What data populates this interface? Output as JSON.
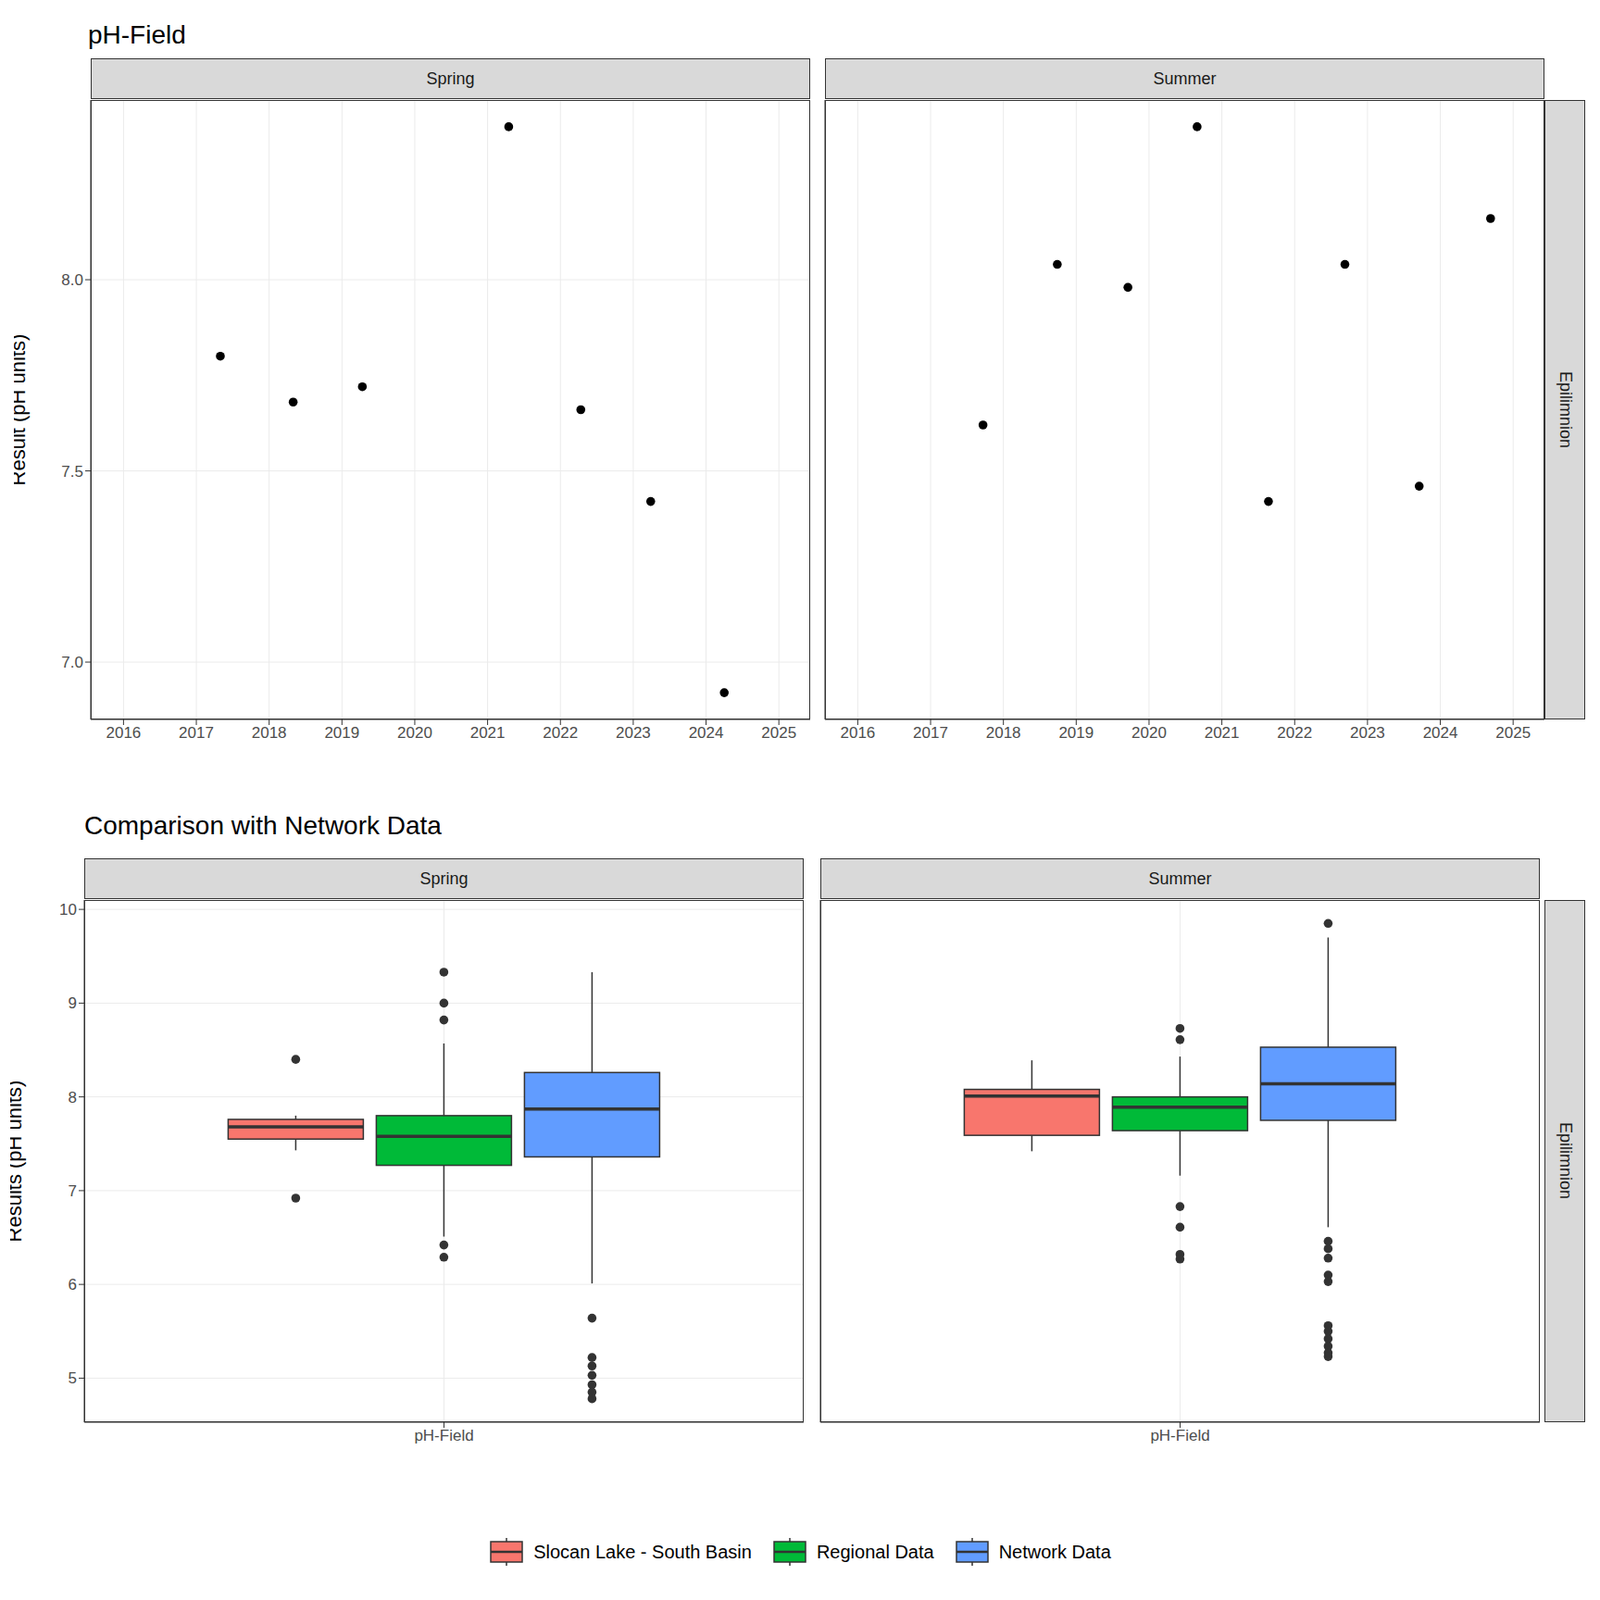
{
  "chart_data": [
    {
      "type": "scatter",
      "title": "pH-Field",
      "y_label": "Result (pH units)",
      "row_label": "Epilimnion",
      "color": "#000000",
      "grid": true,
      "xlim": [
        2015.55,
        2025.43
      ],
      "xticks": [
        2016,
        2017,
        2018,
        2019,
        2020,
        2021,
        2022,
        2023,
        2024,
        2025
      ],
      "ylim": [
        6.85,
        8.47
      ],
      "yticks": [
        {
          "value": 7,
          "label": "7.0"
        },
        7.5,
        {
          "value": 8,
          "label": "8.0"
        }
      ],
      "panels": [
        {
          "label": "Spring",
          "x": [
            2017.33,
            2018.33,
            2019.28,
            2021.29,
            2022.28,
            2023.24,
            2024.25
          ],
          "y": [
            7.8,
            7.68,
            7.72,
            8.4,
            7.66,
            7.42,
            6.92
          ]
        },
        {
          "label": "Summer",
          "x": [
            2017.72,
            2018.74,
            2019.71,
            2020.66,
            2021.64,
            2022.69,
            2023.71,
            2024.69
          ],
          "y": [
            7.62,
            8.04,
            7.98,
            8.4,
            7.42,
            8.04,
            7.46,
            8.16
          ]
        }
      ]
    },
    {
      "type": "boxplot",
      "title": "Comparison with Network Data",
      "y_label": "Results (pH units)",
      "row_label": "Epilimnion",
      "grid": true,
      "legend": "bottom",
      "categories": [
        "pH-Field"
      ],
      "ylim": [
        4.53,
        10.1
      ],
      "yticks": [
        5,
        6,
        7,
        8,
        9,
        10
      ],
      "series": [
        {
          "name": "Slocan Lake - South Basin",
          "color": "#F8766D"
        },
        {
          "name": "Regional Data",
          "color": "#00BA38"
        },
        {
          "name": "Network Data",
          "color": "#619CFF"
        }
      ],
      "panels": [
        {
          "label": "Spring",
          "boxes": [
            {
              "q1": 7.55,
              "median": 7.68,
              "q3": 7.76,
              "whisker_low": 7.43,
              "whisker_high": 7.8,
              "outliers": [
                8.4,
                6.92
              ]
            },
            {
              "q1": 7.27,
              "median": 7.58,
              "q3": 7.8,
              "whisker_low": 6.51,
              "whisker_high": 8.57,
              "outliers": [
                9.33,
                9.0,
                8.82,
                6.42,
                6.29
              ]
            },
            {
              "q1": 7.36,
              "median": 7.87,
              "q3": 8.26,
              "whisker_low": 6.01,
              "whisker_high": 9.33,
              "outliers": [
                5.64,
                5.22,
                5.13,
                5.03,
                4.93,
                4.85,
                4.78
              ]
            }
          ]
        },
        {
          "label": "Summer",
          "boxes": [
            {
              "q1": 7.59,
              "median": 8.01,
              "q3": 8.08,
              "whisker_low": 7.42,
              "whisker_high": 8.39,
              "outliers": []
            },
            {
              "q1": 7.64,
              "median": 7.89,
              "q3": 8.0,
              "whisker_low": 7.16,
              "whisker_high": 8.43,
              "outliers": [
                8.73,
                8.61,
                6.83,
                6.61,
                6.32,
                6.27
              ]
            },
            {
              "q1": 7.75,
              "median": 8.14,
              "q3": 8.53,
              "whisker_low": 6.61,
              "whisker_high": 9.7,
              "outliers": [
                9.85,
                6.46,
                6.38,
                6.28,
                6.1,
                6.03,
                5.56,
                5.5,
                5.42,
                5.34,
                5.27,
                5.23
              ]
            }
          ]
        }
      ]
    }
  ]
}
